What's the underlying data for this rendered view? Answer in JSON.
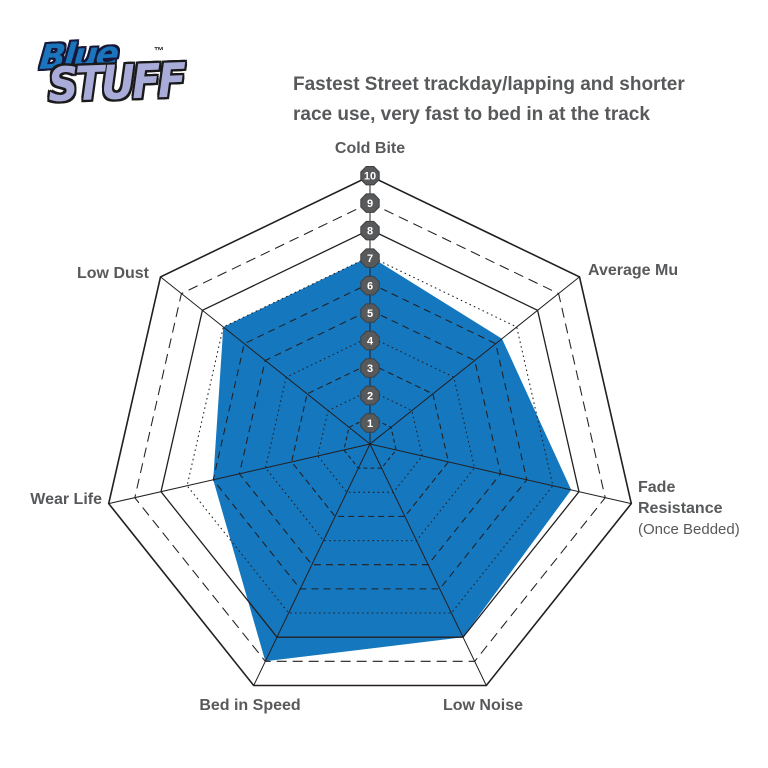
{
  "logo": {
    "blue": "Blue",
    "stuff": "STUFF",
    "tm": "™",
    "blue_color": "#1B75BC",
    "stuff_color": "#A9ABD8"
  },
  "title": {
    "line1": "Fastest Street trackday/lapping and shorter",
    "line2": "race use, very fast to bed in at the track"
  },
  "labels": {
    "cold_bite": "Cold Bite",
    "average_mu": "Average Mu",
    "fade_line1": "Fade",
    "fade_line2": "Resistance",
    "fade_line3": "(Once Bedded)",
    "low_noise": "Low Noise",
    "bed_in_speed": "Bed in Speed",
    "wear_life": "Wear Life",
    "low_dust": "Low Dust"
  },
  "chart_data": {
    "type": "radar",
    "categories": [
      "Cold Bite",
      "Average Mu",
      "Fade Resistance (Once Bedded)",
      "Low Noise",
      "Bed in Speed",
      "Wear Life",
      "Low Dust"
    ],
    "values": [
      7,
      6.3,
      7.7,
      8,
      9,
      6,
      7
    ],
    "axis_range": [
      0,
      10
    ],
    "ring_count": 10,
    "tick_labels": [
      "1",
      "2",
      "3",
      "4",
      "5",
      "6",
      "7",
      "8",
      "9",
      "10"
    ],
    "tick_axis": "Cold Bite",
    "grid": "heptagonal web, 10 rings, mixed solid/dashed/dotted",
    "legend_position": "none",
    "fill_color": "#1577BE",
    "grid_color": "#231F20",
    "badge_fill": "#58595B",
    "badge_text_color": "#FFFFFF",
    "label_color": "#58595B"
  }
}
